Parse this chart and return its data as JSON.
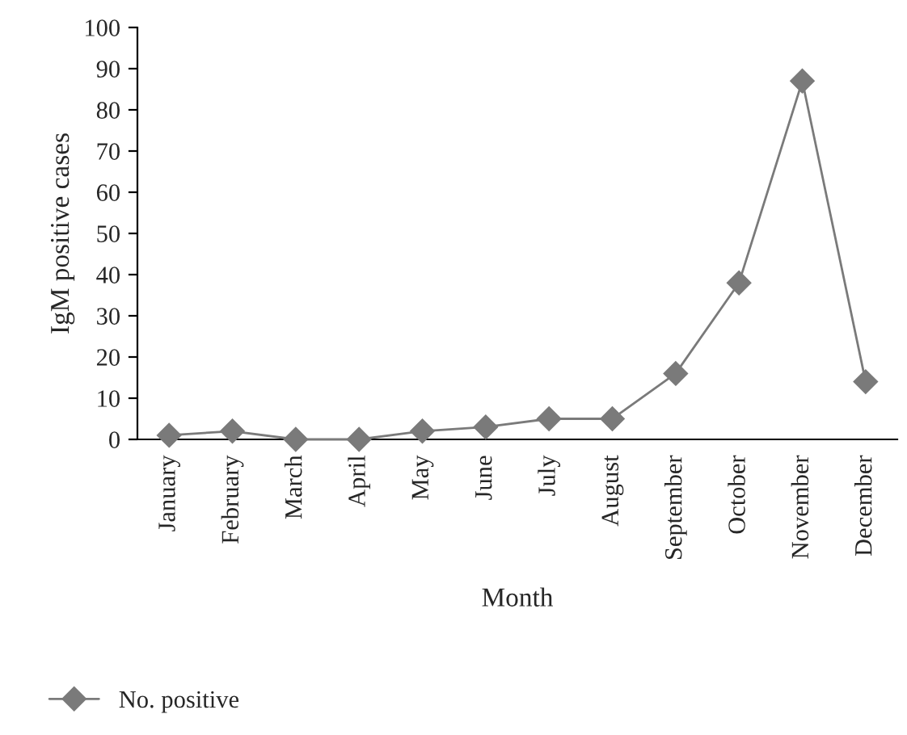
{
  "chart_data": {
    "type": "line",
    "xlabel": "Month",
    "ylabel": "IgM positive cases",
    "categories": [
      "January",
      "February",
      "March",
      "April",
      "May",
      "June",
      "July",
      "August",
      "September",
      "October",
      "November",
      "December"
    ],
    "series": [
      {
        "name": "No. positive",
        "color": "#7a7a7a",
        "values": [
          1,
          2,
          0,
          0,
          2,
          3,
          5,
          5,
          16,
          38,
          87,
          14
        ]
      }
    ],
    "ylim": [
      0,
      100
    ],
    "yticks": [
      0,
      10,
      20,
      30,
      40,
      50,
      60,
      70,
      80,
      90,
      100
    ],
    "grid": false,
    "legend": "bottom left",
    "marker": "diamond",
    "line_style": "solid"
  }
}
